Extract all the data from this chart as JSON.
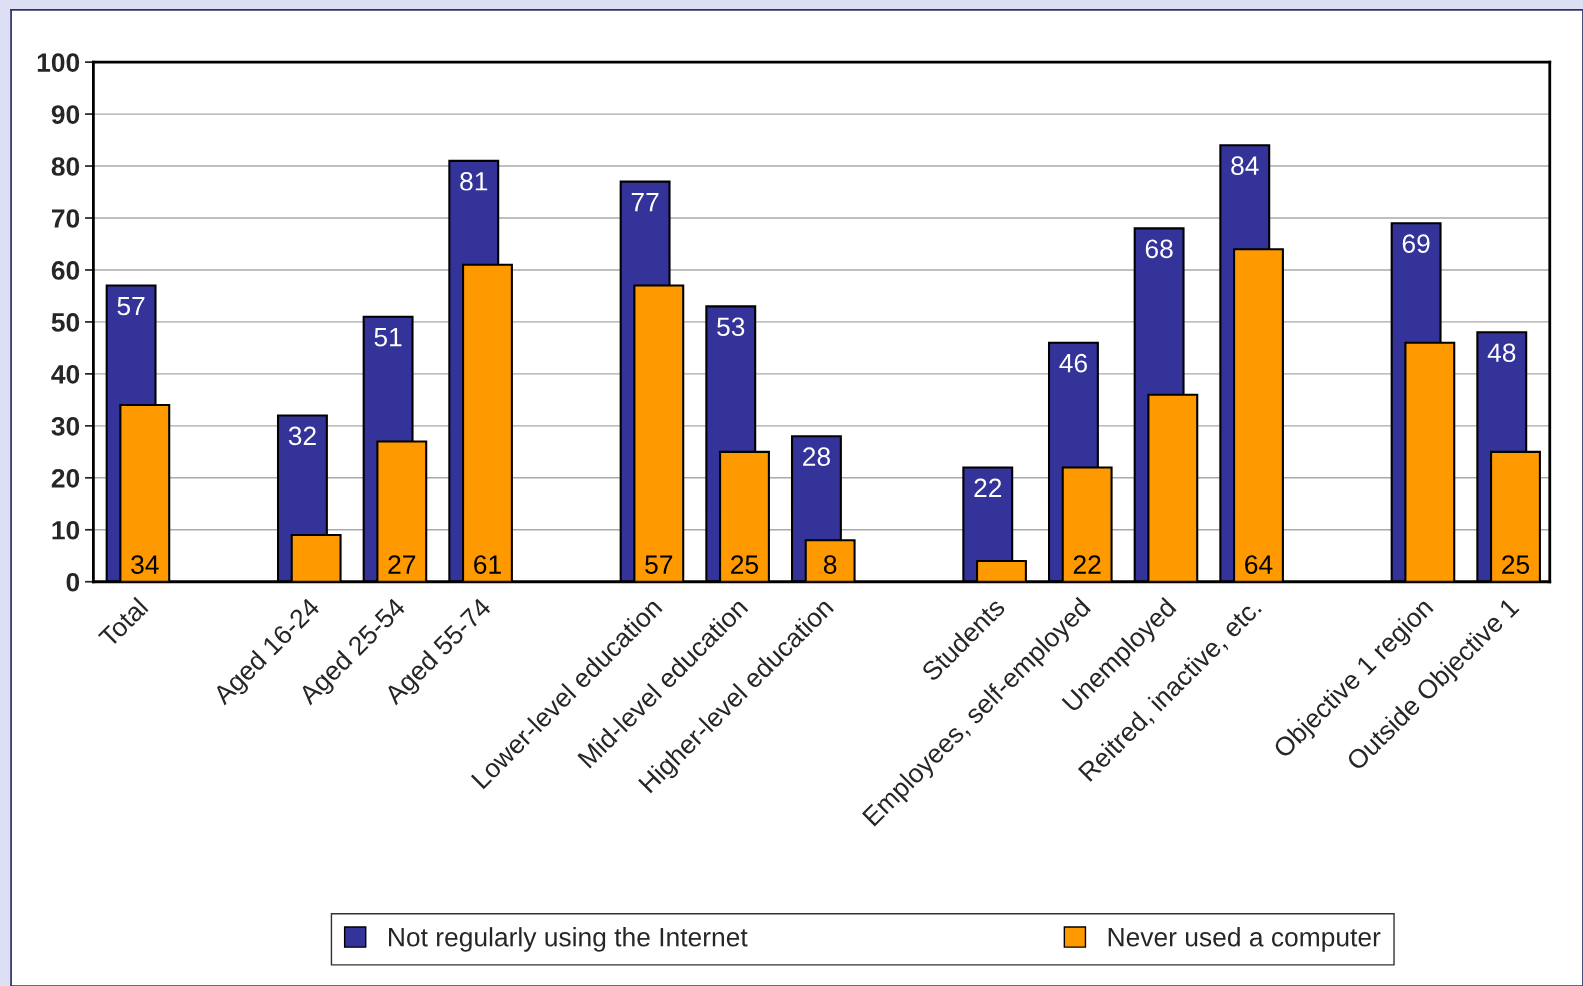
{
  "chart_data": {
    "type": "bar",
    "categories": [
      "Total",
      null,
      "Aged 16-24",
      "Aged 25-54",
      "Aged 55-74",
      null,
      "Lower-level education",
      "Mid-level education",
      "Higher-level education",
      null,
      "Students",
      "Employees, self-employed",
      "Unemployed",
      "Reitred, inactive, etc.",
      null,
      "Objective 1 region",
      "Outside Objective 1"
    ],
    "series": [
      {
        "name": "Not regularly using the Internet",
        "color": "#333399",
        "values": [
          57,
          null,
          32,
          51,
          81,
          null,
          77,
          53,
          28,
          null,
          22,
          46,
          68,
          84,
          null,
          69,
          48
        ],
        "value_labels": [
          "57",
          null,
          "32",
          "51",
          "81",
          null,
          "77",
          "53",
          "28",
          null,
          "22",
          "46",
          "68",
          "84",
          null,
          "69",
          "48"
        ]
      },
      {
        "name": "Never used a computer",
        "color": "#ff9900",
        "values": [
          34,
          null,
          9,
          27,
          61,
          null,
          57,
          25,
          8,
          null,
          4,
          22,
          36,
          64,
          null,
          46,
          25
        ],
        "value_labels": [
          "34",
          null,
          null,
          "27",
          "61",
          null,
          "57",
          "25",
          "8",
          null,
          null,
          "22",
          null,
          "64",
          null,
          null,
          "25"
        ]
      }
    ],
    "ylim": [
      0,
      100
    ],
    "yticks": [
      0,
      10,
      20,
      30,
      40,
      50,
      60,
      70,
      80,
      90,
      100
    ],
    "grid": "y",
    "legend": "bottom"
  }
}
